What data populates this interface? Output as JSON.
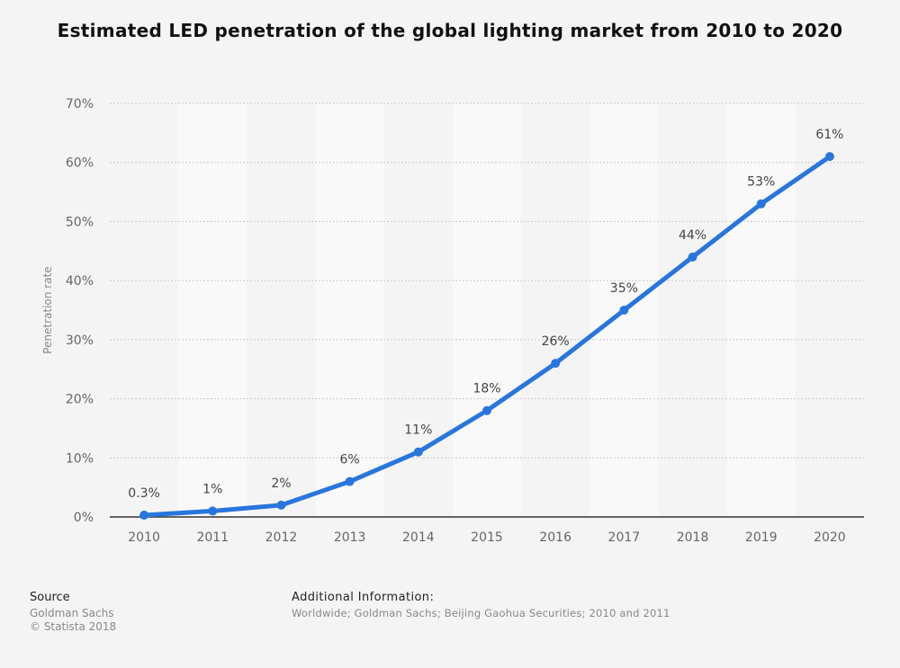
{
  "chart_data": {
    "type": "line",
    "title": "Estimated LED penetration of the global lighting market from 2010 to 2020",
    "xlabel": "",
    "ylabel": "Penetration rate",
    "categories": [
      "2010",
      "2011",
      "2012",
      "2013",
      "2014",
      "2015",
      "2016",
      "2017",
      "2018",
      "2019",
      "2020"
    ],
    "values": [
      0.3,
      1,
      2,
      6,
      11,
      18,
      26,
      35,
      44,
      53,
      61
    ],
    "data_labels": [
      "0.3%",
      "1%",
      "2%",
      "6%",
      "11%",
      "18%",
      "26%",
      "35%",
      "44%",
      "53%",
      "61%"
    ],
    "ylim": [
      0,
      70
    ],
    "yticks": [
      "0%",
      "10%",
      "20%",
      "30%",
      "40%",
      "50%",
      "60%",
      "70%"
    ],
    "grid": true,
    "line_color": "#2876dd"
  },
  "footer": {
    "source_heading": "Source",
    "source_name": "Goldman Sachs",
    "copyright": "© Statista 2018",
    "additional_heading": "Additional Information:",
    "additional_text": "Worldwide; Goldman Sachs; Beijing Gaohua Securities; 2010 and 2011"
  }
}
